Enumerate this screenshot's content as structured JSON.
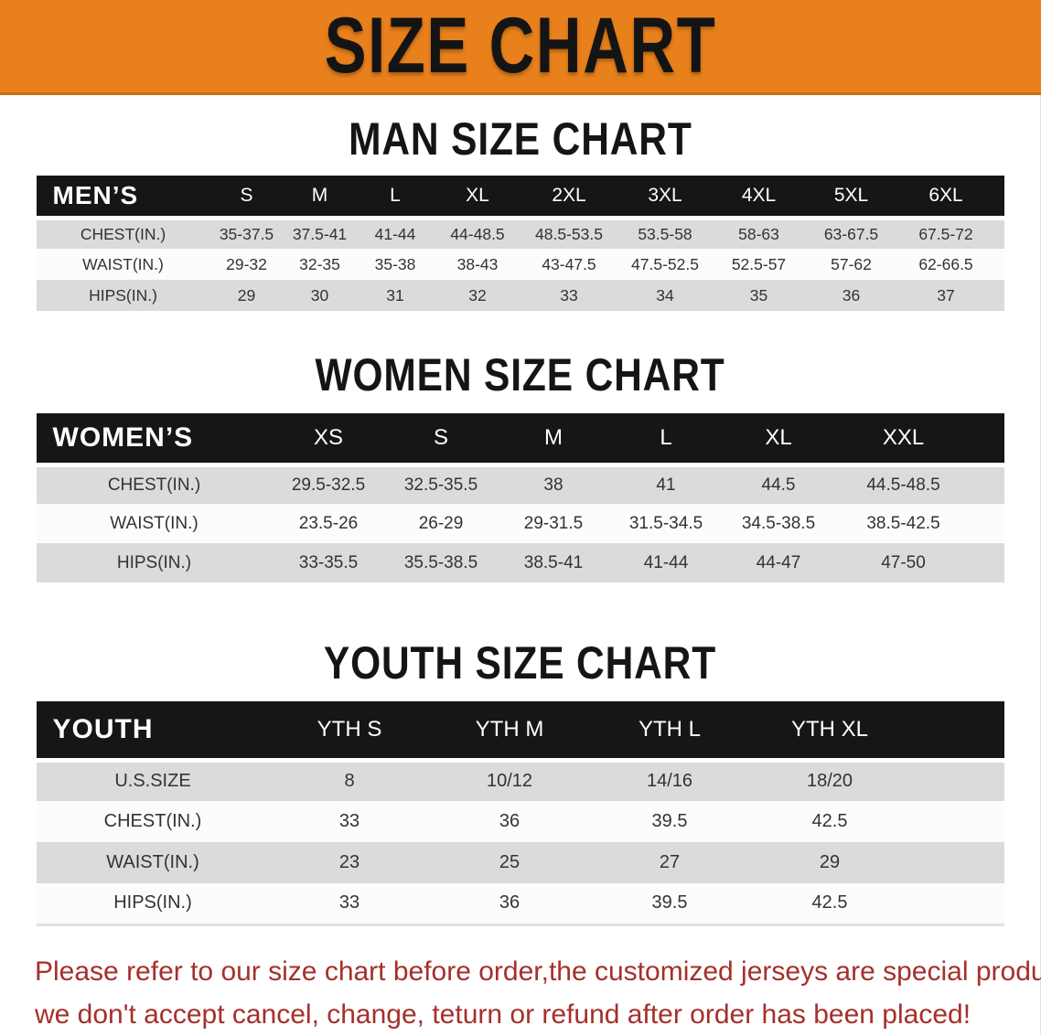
{
  "banner": {
    "title": "SIZE CHART"
  },
  "sections": [
    {
      "title": "MAN SIZE CHART",
      "table": {
        "header_label": "MEN’S",
        "columns": [
          "S",
          "M",
          "L",
          "XL",
          "2XL",
          "3XL",
          "4XL",
          "5XL",
          "6XL"
        ],
        "rows": [
          {
            "label": "CHEST(IN.)",
            "values": [
              "35-37.5",
              "37.5-41",
              "41-44",
              "44-48.5",
              "48.5-53.5",
              "53.5-58",
              "58-63",
              "63-67.5",
              "67.5-72"
            ]
          },
          {
            "label": "WAIST(IN.)",
            "values": [
              "29-32",
              "32-35",
              "35-38",
              "38-43",
              "43-47.5",
              "47.5-52.5",
              "52.5-57",
              "57-62",
              "62-66.5"
            ]
          },
          {
            "label": "HIPS(IN.)",
            "values": [
              "29",
              "30",
              "31",
              "32",
              "33",
              "34",
              "35",
              "36",
              "37"
            ]
          }
        ]
      }
    },
    {
      "title": "WOMEN SIZE CHART",
      "table": {
        "header_label": "WOMEN’S",
        "columns": [
          "XS",
          "S",
          "M",
          "L",
          "XL",
          "XXL"
        ],
        "rows": [
          {
            "label": "CHEST(IN.)",
            "values": [
              "29.5-32.5",
              "32.5-35.5",
              "38",
              "41",
              "44.5",
              "44.5-48.5"
            ]
          },
          {
            "label": "WAIST(IN.)",
            "values": [
              "23.5-26",
              "26-29",
              "29-31.5",
              "31.5-34.5",
              "34.5-38.5",
              "38.5-42.5"
            ]
          },
          {
            "label": "HIPS(IN.)",
            "values": [
              "33-35.5",
              "35.5-38.5",
              "38.5-41",
              "41-44",
              "44-47",
              "47-50"
            ]
          }
        ]
      }
    },
    {
      "title": "YOUTH SIZE CHART",
      "table": {
        "header_label": "YOUTH",
        "columns": [
          "YTH S",
          "YTH M",
          "YTH L",
          "YTH XL"
        ],
        "rows": [
          {
            "label": "U.S.SIZE",
            "values": [
              "8",
              "10/12",
              "14/16",
              "18/20"
            ]
          },
          {
            "label": "CHEST(IN.)",
            "values": [
              "33",
              "36",
              "39.5",
              "42.5"
            ]
          },
          {
            "label": "WAIST(IN.)",
            "values": [
              "23",
              "25",
              "27",
              "29"
            ]
          },
          {
            "label": "HIPS(IN.)",
            "values": [
              "33",
              "36",
              "39.5",
              "42.5"
            ]
          }
        ]
      }
    }
  ],
  "disclaimer": {
    "line1": "Please refer to our size chart before order,the customized jerseys are special products,",
    "line2": "we don't accept cancel, change, teturn or refund after order has been placed!"
  },
  "colors": {
    "banner_background": "#E8811C",
    "table_header_background": "#161616",
    "table_header_text": "#FFFFFF",
    "shaded_row_background": "#DBDBDB",
    "disclaimer_text": "#A5302B",
    "title_text": "#151515"
  }
}
